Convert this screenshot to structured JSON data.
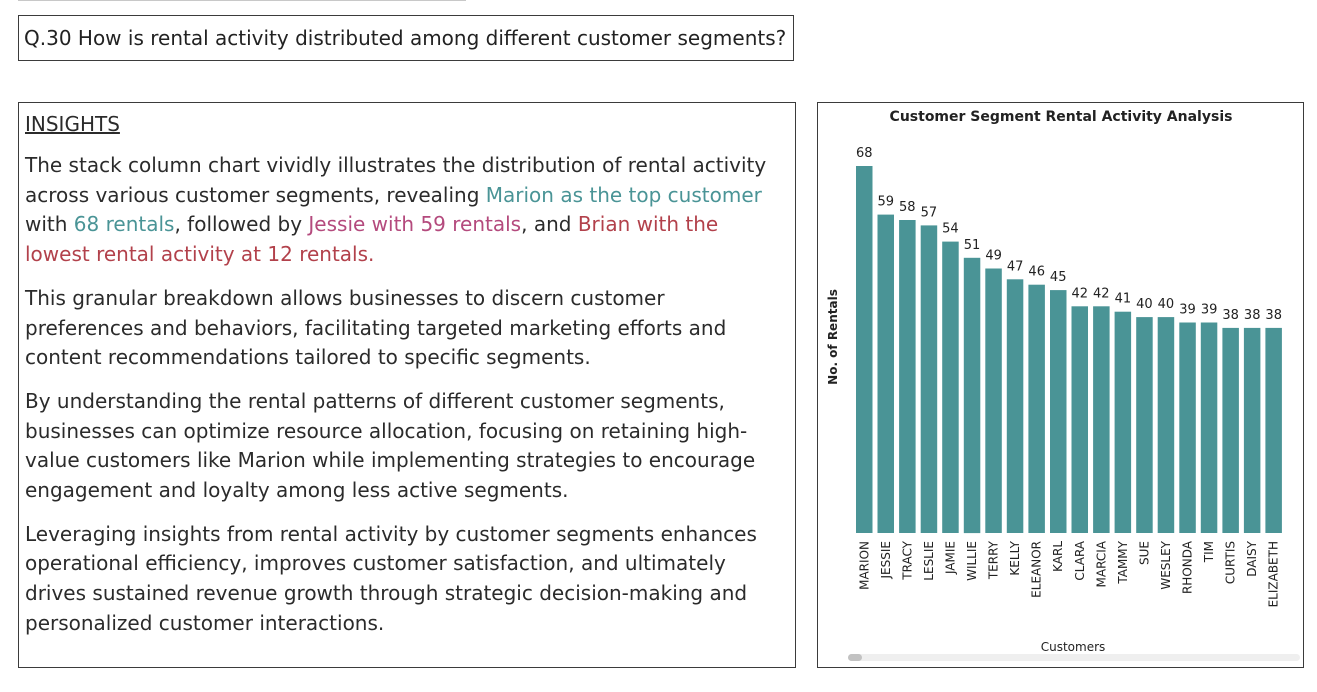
{
  "question": "Q.30 How is rental activity distributed among different customer segments?",
  "insights": {
    "heading": "INSIGHTS",
    "p1": {
      "t1": "The stack column chart vividly illustrates the distribution of rental activity across various customer segments, revealing ",
      "h1": "Marion as the top customer",
      "t2": " with ",
      "h2": "68 rentals",
      "t3": ", followed by ",
      "h3": "Jessie with 59 rentals",
      "t4": ", and ",
      "h4": "Brian with the lowest rental activity at 12 rentals."
    },
    "p2": "This granular breakdown allows businesses to discern customer preferences and behaviors, facilitating targeted marketing efforts and content recommendations tailored to specific segments.",
    "p3": "By understanding the rental patterns of different customer segments, businesses can optimize resource allocation, focusing on retaining high-value customers like Marion while implementing strategies to encourage engagement and loyalty among less active segments.",
    "p4": "Leveraging insights from rental activity by customer segments enhances operational efficiency, improves customer satisfaction, and ultimately drives sustained revenue growth through strategic decision-making and personalized customer interactions."
  },
  "chart_data": {
    "type": "bar",
    "title": "Customer Segment Rental Activity Analysis",
    "xlabel": "Customers",
    "ylabel": "No. of Rentals",
    "categories": [
      "MARION",
      "JESSIE",
      "TRACY",
      "LESLIE",
      "JAMIE",
      "WILLIE",
      "TERRY",
      "KELLY",
      "ELEANOR",
      "KARL",
      "CLARA",
      "MARCIA",
      "TAMMY",
      "SUE",
      "WESLEY",
      "RHONDA",
      "TIM",
      "CURTIS",
      "DAISY",
      "ELIZABETH"
    ],
    "values": [
      68,
      59,
      58,
      57,
      54,
      51,
      49,
      47,
      46,
      45,
      42,
      42,
      41,
      40,
      40,
      39,
      39,
      38,
      38,
      38
    ],
    "ylim": [
      0,
      68
    ],
    "bar_color": "#4a9496",
    "grid": false,
    "data_labels": true
  }
}
